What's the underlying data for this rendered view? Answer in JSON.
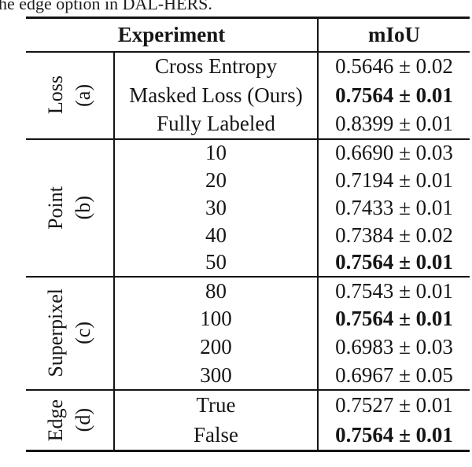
{
  "caption": {
    "text": "he edge option in DAL-HERS."
  },
  "table": {
    "headers": [
      "Experiment",
      "mIoU"
    ],
    "sections": [
      {
        "group": "Loss",
        "tag": "(a)",
        "rows": [
          {
            "experiment": "Cross Entropy",
            "miou": "0.5646 ± 0.02",
            "bold": false
          },
          {
            "experiment": "Masked Loss (Ours)",
            "miou": "0.7564 ± 0.01",
            "bold": true
          },
          {
            "experiment": "Fully Labeled",
            "miou": "0.8399 ± 0.01",
            "bold": false
          }
        ]
      },
      {
        "group": "Point",
        "tag": "(b)",
        "rows": [
          {
            "experiment": "10",
            "miou": "0.6690 ± 0.03",
            "bold": false
          },
          {
            "experiment": "20",
            "miou": "0.7194 ± 0.01",
            "bold": false
          },
          {
            "experiment": "30",
            "miou": "0.7433 ± 0.01",
            "bold": false
          },
          {
            "experiment": "40",
            "miou": "0.7384 ± 0.02",
            "bold": false
          },
          {
            "experiment": "50",
            "miou": "0.7564 ± 0.01",
            "bold": true
          }
        ]
      },
      {
        "group": "Superpixel",
        "tag": "(c)",
        "rows": [
          {
            "experiment": "80",
            "miou": "0.7543 ± 0.01",
            "bold": false
          },
          {
            "experiment": "100",
            "miou": "0.7564 ± 0.01",
            "bold": true
          },
          {
            "experiment": "200",
            "miou": "0.6983 ± 0.03",
            "bold": false
          },
          {
            "experiment": "300",
            "miou": "0.6967 ± 0.05",
            "bold": false
          }
        ]
      },
      {
        "group": "Edge",
        "tag": "(d)",
        "rows": [
          {
            "experiment": "True",
            "miou": "0.7527 ± 0.01",
            "bold": false
          },
          {
            "experiment": "False",
            "miou": "0.7564 ± 0.01",
            "bold": true
          }
        ]
      }
    ]
  },
  "colors": {
    "text": "#161616",
    "rule": "#141414",
    "background": "#ffffff"
  }
}
